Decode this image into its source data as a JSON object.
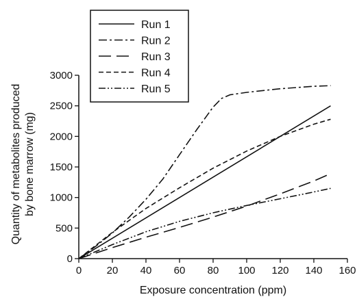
{
  "chart_data": {
    "type": "line",
    "title": "",
    "xlabel": "Exposure concentration (ppm)",
    "ylabel_lines": [
      "Quantity of metabolites produced",
      "by bone marrow (mg)"
    ],
    "xlim": [
      0,
      160
    ],
    "ylim": [
      0,
      3000
    ],
    "x_ticks": [
      0,
      20,
      40,
      60,
      80,
      100,
      120,
      140,
      160
    ],
    "y_ticks": [
      0,
      500,
      1000,
      1500,
      2000,
      2500,
      3000
    ],
    "grid": false,
    "legend_position": "top-left",
    "series": [
      {
        "name": "Run 1",
        "dash": "solid",
        "x": [
          0,
          150
        ],
        "y": [
          0,
          2500
        ]
      },
      {
        "name": "Run 2",
        "dash": "dash-dot",
        "x": [
          0,
          10,
          20,
          30,
          40,
          50,
          60,
          70,
          80,
          85,
          90,
          100,
          110,
          120,
          130,
          140,
          150
        ],
        "y": [
          0,
          200,
          420,
          680,
          970,
          1300,
          1700,
          2100,
          2480,
          2620,
          2680,
          2720,
          2750,
          2780,
          2800,
          2820,
          2830
        ]
      },
      {
        "name": "Run 3",
        "dash": "long-dash",
        "x": [
          0,
          20,
          40,
          60,
          80,
          100,
          120,
          140,
          150
        ],
        "y": [
          0,
          180,
          350,
          510,
          680,
          860,
          1060,
          1270,
          1390
        ]
      },
      {
        "name": "Run 4",
        "dash": "short-dash",
        "x": [
          0,
          20,
          40,
          60,
          80,
          100,
          120,
          140,
          150
        ],
        "y": [
          0,
          430,
          820,
          1160,
          1480,
          1760,
          2000,
          2200,
          2280
        ]
      },
      {
        "name": "Run 5",
        "dash": "dash-dot-dot",
        "x": [
          0,
          20,
          40,
          60,
          80,
          100,
          120,
          140,
          150
        ],
        "y": [
          0,
          230,
          440,
          610,
          750,
          870,
          980,
          1090,
          1150
        ]
      }
    ]
  }
}
